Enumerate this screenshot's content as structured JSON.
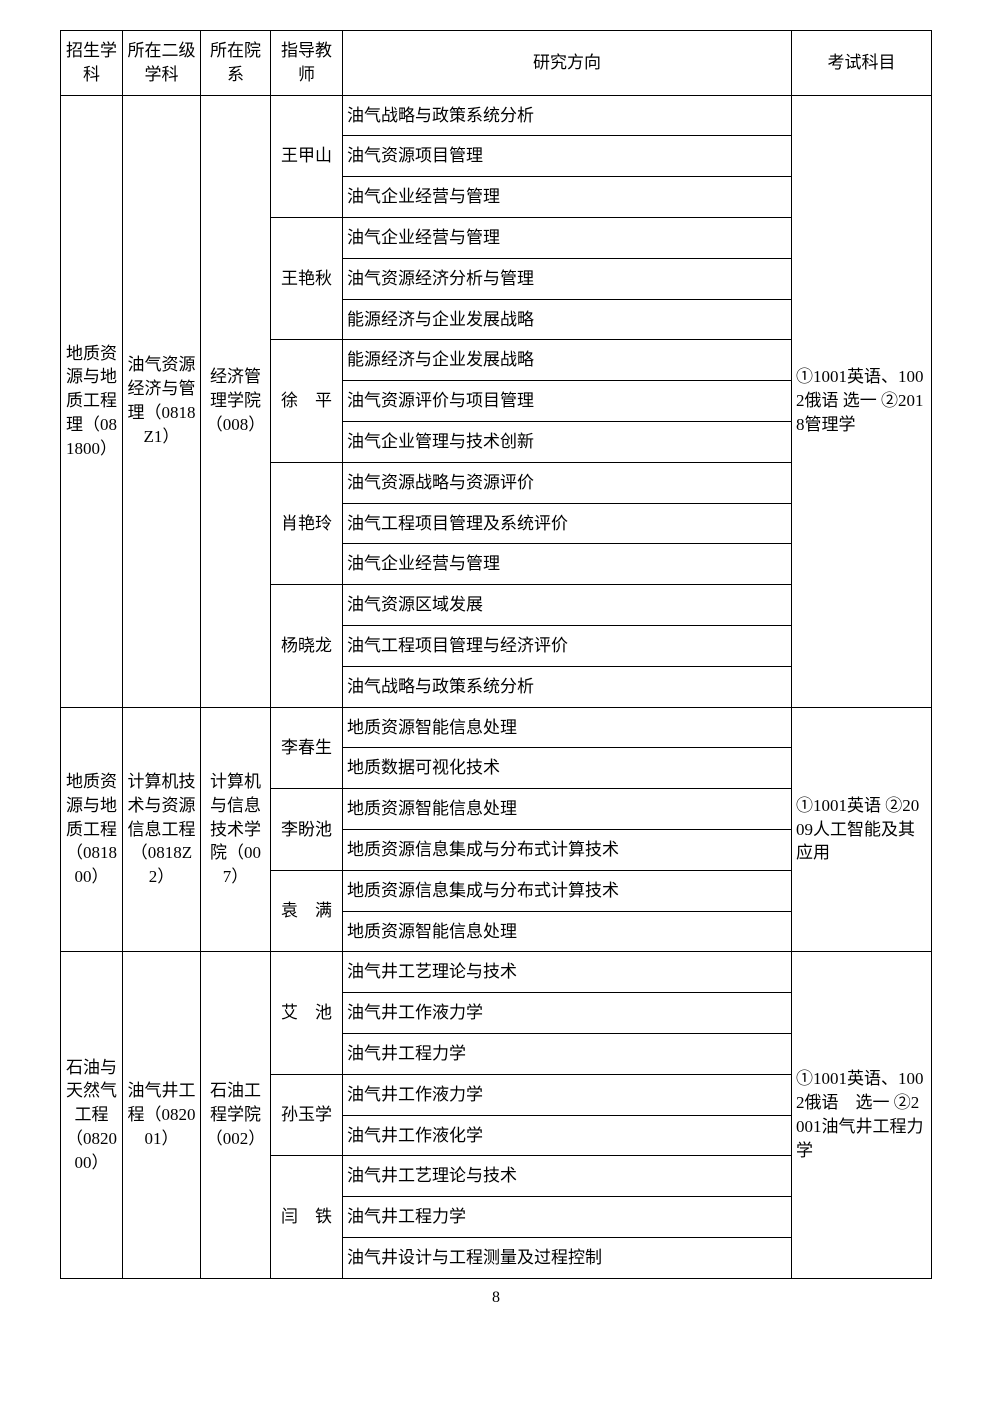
{
  "headers": {
    "enroll": "招生学科",
    "sub2": "所在二级学科",
    "dept": "所在院系",
    "advisor": "指导教师",
    "direction": "研究方向",
    "exam": "考试科目"
  },
  "blocks": [
    {
      "enroll": "地质资源与地质工程理（081800）",
      "sub2": "油气资源经济与管理（0818Z1）",
      "dept": "经济管理学院（008）",
      "exam": "①1001英语、1002俄语 选一 ②2018管理学",
      "advisors": [
        {
          "name": "王甲山",
          "dirs": [
            "油气战略与政策系统分析",
            "油气资源项目管理",
            "油气企业经营与管理"
          ]
        },
        {
          "name": "王艳秋",
          "dirs": [
            "油气企业经营与管理",
            "油气资源经济分析与管理",
            "能源经济与企业发展战略"
          ]
        },
        {
          "name": "徐　平",
          "dirs": [
            "能源经济与企业发展战略",
            "油气资源评价与项目管理",
            "油气企业管理与技术创新"
          ]
        },
        {
          "name": "肖艳玲",
          "dirs": [
            "油气资源战略与资源评价",
            "油气工程项目管理及系统评价",
            "油气企业经营与管理"
          ]
        },
        {
          "name": "杨晓龙",
          "dirs": [
            "油气资源区域发展",
            "油气工程项目管理与经济评价",
            "油气战略与政策系统分析"
          ]
        }
      ]
    },
    {
      "enroll": "地质资源与地质工程（081800）",
      "sub2": "计算机技术与资源信息工程（0818Z2）",
      "dept": "计算机与信息技术学院（007）",
      "exam": "①1001英语 ②2009人工智能及其应用",
      "advisors": [
        {
          "name": "李春生",
          "dirs": [
            "地质资源智能信息处理",
            "地质数据可视化技术"
          ]
        },
        {
          "name": "李盼池",
          "dirs": [
            "地质资源智能信息处理",
            "地质资源信息集成与分布式计算技术"
          ]
        },
        {
          "name": "袁　满",
          "dirs": [
            "地质资源信息集成与分布式计算技术",
            "地质资源智能信息处理"
          ]
        }
      ]
    },
    {
      "enroll": "石油与天然气工程（082000）",
      "sub2": "油气井工程（082001）",
      "dept": "石油工程学院（002）",
      "exam": "①1001英语、1002俄语　选一 ②2001油气井工程力学",
      "advisors": [
        {
          "name": "艾　池",
          "dirs": [
            "油气井工艺理论与技术",
            "油气井工作液力学",
            "油气井工程力学"
          ]
        },
        {
          "name": "孙玉学",
          "dirs": [
            "油气井工作液力学",
            "油气井工作液化学"
          ]
        },
        {
          "name": "闫　铁",
          "dirs": [
            "油气井工艺理论与技术",
            "油气井工程力学",
            "油气井设计与工程测量及过程控制"
          ]
        }
      ]
    }
  ],
  "pageNumber": "8"
}
